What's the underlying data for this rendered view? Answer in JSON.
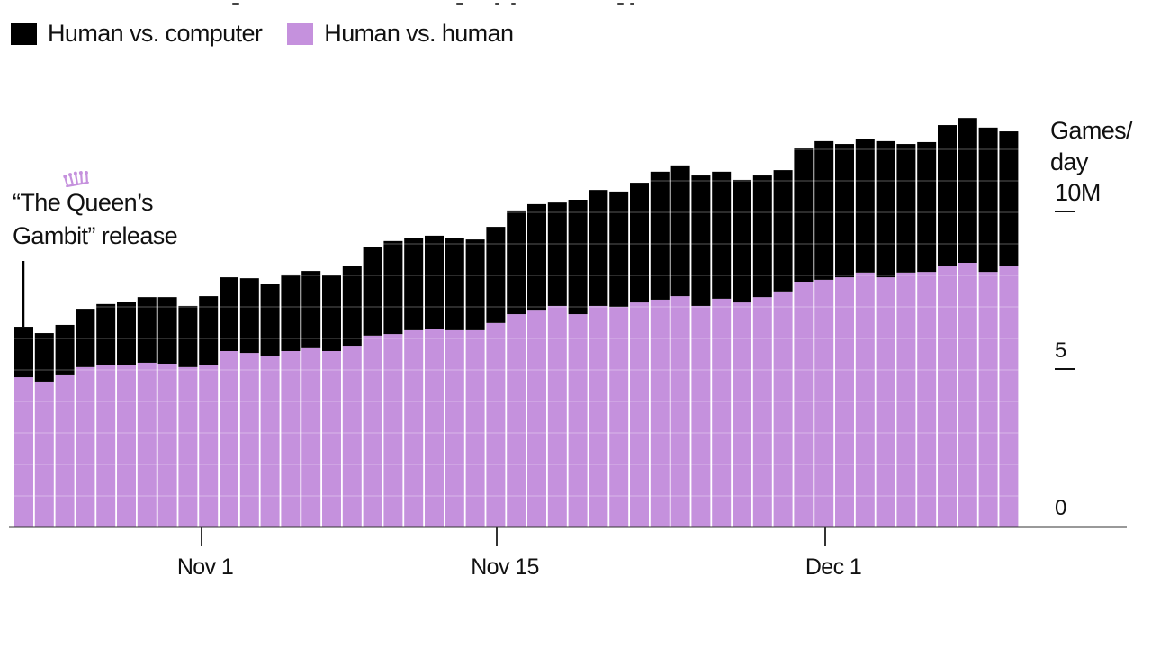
{
  "legend": {
    "items": [
      {
        "label": "Human vs. computer",
        "color": "#000000"
      },
      {
        "label": "Human vs. human",
        "color": "#c591dd"
      }
    ]
  },
  "annotation": {
    "line1": "“The Queen’s",
    "line2": "Gambit” release",
    "icon": "crown-icon",
    "icon_color": "#c591dd"
  },
  "y_axis": {
    "unit_line1": "Games/",
    "unit_line2": "day",
    "ticks": [
      {
        "label": "10M",
        "value": 10
      },
      {
        "label": "5",
        "value": 5
      },
      {
        "label": "0",
        "value": 0
      }
    ]
  },
  "x_axis": {
    "ticks": [
      {
        "label": "Nov 1",
        "index": 9
      },
      {
        "label": "Nov 15",
        "index": 23
      },
      {
        "label": "Dec 1",
        "index": 39
      }
    ]
  },
  "colors": {
    "computer": "#000000",
    "human": "#c591dd",
    "gridline": "#ffffff",
    "axis": "#333333"
  },
  "chart_data": {
    "type": "bar",
    "stacked": true,
    "title": "",
    "xlabel": "",
    "ylabel": "Games/day",
    "ylim": [
      0,
      13.5
    ],
    "yticks": [
      0,
      5,
      10
    ],
    "grid": true,
    "legend_position": "top-left",
    "annotations": [
      {
        "text": "“The Queen’s Gambit” release",
        "x": "Oct 23"
      }
    ],
    "categories": [
      "Oct 23",
      "Oct 24",
      "Oct 25",
      "Oct 26",
      "Oct 27",
      "Oct 28",
      "Oct 29",
      "Oct 30",
      "Oct 31",
      "Nov 1",
      "Nov 2",
      "Nov 3",
      "Nov 4",
      "Nov 5",
      "Nov 6",
      "Nov 7",
      "Nov 8",
      "Nov 9",
      "Nov 10",
      "Nov 11",
      "Nov 12",
      "Nov 13",
      "Nov 14",
      "Nov 15",
      "Nov 16",
      "Nov 17",
      "Nov 18",
      "Nov 19",
      "Nov 20",
      "Nov 21",
      "Nov 22",
      "Nov 23",
      "Nov 24",
      "Nov 25",
      "Nov 26",
      "Nov 27",
      "Nov 28",
      "Nov 29",
      "Nov 30",
      "Dec 1",
      "Dec 2",
      "Dec 3",
      "Dec 4",
      "Dec 5",
      "Dec 6",
      "Dec 7",
      "Dec 8",
      "Dec 9",
      "Dec 10"
    ],
    "x_tick_labels": [
      "Nov 1",
      "Nov 15",
      "Dec 1"
    ],
    "series": [
      {
        "name": "Human vs. human",
        "color": "#c591dd",
        "values": [
          4.77,
          4.63,
          4.83,
          5.09,
          5.17,
          5.17,
          5.23,
          5.2,
          5.09,
          5.17,
          5.6,
          5.54,
          5.43,
          5.6,
          5.69,
          5.6,
          5.77,
          6.09,
          6.14,
          6.26,
          6.29,
          6.26,
          6.26,
          6.49,
          6.77,
          6.91,
          7.03,
          6.77,
          7.03,
          7.0,
          7.14,
          7.23,
          7.34,
          7.03,
          7.26,
          7.14,
          7.31,
          7.49,
          7.8,
          7.86,
          7.94,
          8.09,
          7.94,
          8.09,
          8.11,
          8.31,
          8.4,
          8.11,
          8.29
        ]
      },
      {
        "name": "Human vs. computer",
        "color": "#000000",
        "values": [
          1.6,
          1.54,
          1.6,
          1.85,
          1.92,
          2.0,
          2.08,
          2.11,
          1.94,
          2.17,
          2.34,
          2.37,
          2.31,
          2.43,
          2.45,
          2.4,
          2.52,
          2.8,
          2.95,
          2.94,
          2.97,
          2.94,
          2.88,
          3.05,
          3.29,
          3.35,
          3.28,
          3.63,
          3.68,
          3.66,
          3.8,
          4.06,
          4.15,
          4.14,
          4.03,
          3.89,
          3.86,
          3.85,
          4.23,
          4.4,
          4.23,
          4.25,
          4.32,
          4.08,
          4.12,
          4.46,
          4.6,
          4.58,
          4.28
        ]
      }
    ],
    "unit": "millions of games per day"
  }
}
